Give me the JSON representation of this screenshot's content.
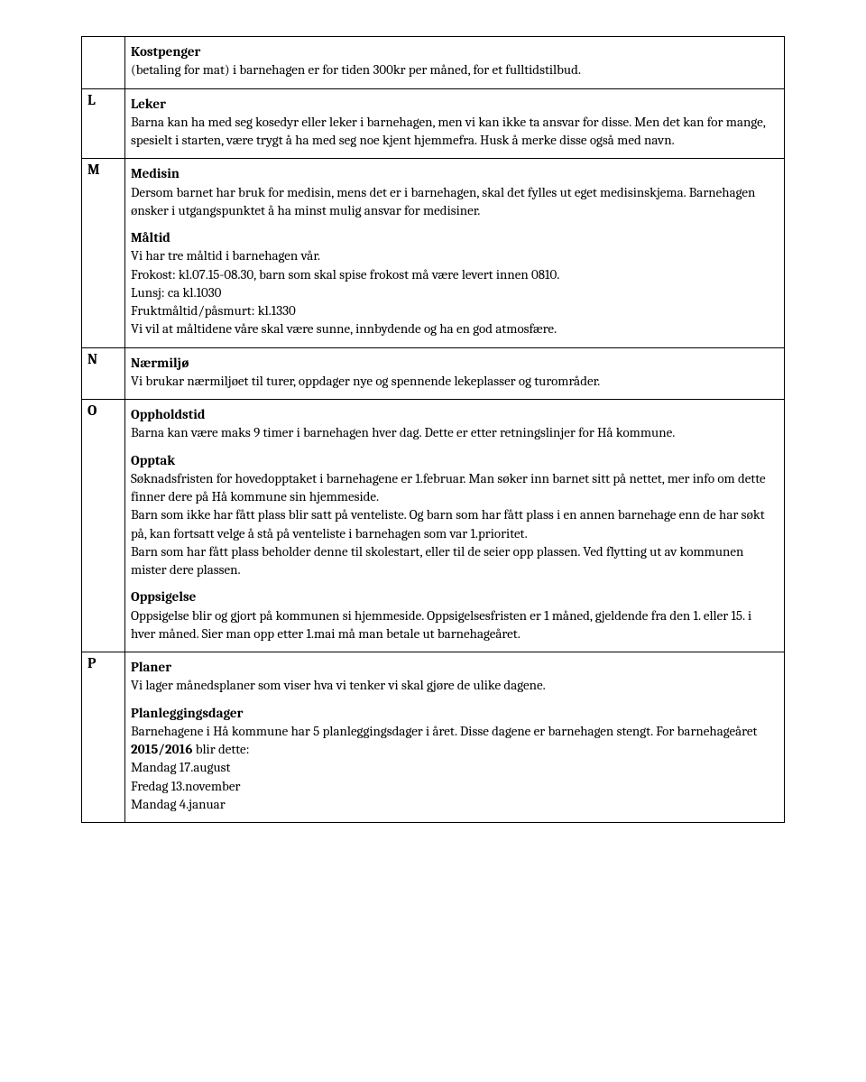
{
  "rows": [
    {
      "letter": "",
      "sections": [
        {
          "heading": "Kostpenger",
          "body": "(betaling for mat) i barnehagen er for tiden 300kr per måned, for et fulltidstilbud."
        }
      ]
    },
    {
      "letter": "L",
      "sections": [
        {
          "heading": "Leker",
          "body": "Barna kan ha med seg kosedyr eller leker i barnehagen, men vi kan ikke ta ansvar for disse. Men det kan for mange, spesielt i starten, være trygt å ha med seg noe kjent hjemmefra. Husk å merke disse også med navn."
        }
      ]
    },
    {
      "letter": "M",
      "sections": [
        {
          "heading": "Medisin",
          "body": "Dersom barnet har bruk for medisin, mens det er i barnehagen, skal det fylles ut eget medisinskjema. Barnehagen ønsker i utgangspunktet å ha minst mulig ansvar for medisiner."
        },
        {
          "heading": "Måltid",
          "lines": [
            "Vi har tre måltid i barnehagen vår.",
            "Frokost: kl.07.15-08.30, barn som skal spise frokost må være levert innen 0810.",
            "Lunsj: ca kl.1030",
            "Fruktmåltid/påsmurt: kl.1330",
            "Vi vil at måltidene våre skal være sunne, innbydende og ha en god atmosfære."
          ]
        }
      ]
    },
    {
      "letter": "N",
      "sections": [
        {
          "heading": "Nærmiljø",
          "body": "Vi brukar nærmiljøet til turer, oppdager nye og spennende lekeplasser og turområder."
        }
      ]
    },
    {
      "letter": "O",
      "sections": [
        {
          "heading": "Oppholdstid",
          "body": "Barna kan være maks 9 timer i barnehagen hver dag. Dette er etter retningslinjer for Hå kommune."
        },
        {
          "heading": "Opptak",
          "paragraphs": [
            "Søknadsfristen for hovedopptaket i barnehagene er 1.februar. Man søker inn barnet sitt på nettet, mer info om dette finner dere på Hå kommune sin hjemmeside.",
            "Barn som ikke har fått plass blir satt på venteliste. Og barn som har fått plass i en annen barnehage enn de har søkt på, kan fortsatt velge å stå på venteliste i barnehagen som var 1.prioritet.",
            "Barn som har fått plass beholder denne til skolestart, eller til de seier opp plassen. Ved flytting ut av kommunen mister dere plassen."
          ]
        },
        {
          "heading": "Oppsigelse",
          "body": "Oppsigelse blir og gjort på kommunen si hjemmeside. Oppsigelsesfristen er 1 måned, gjeldende fra den 1. eller 15. i hver måned.  Sier man opp etter 1.mai må man betale ut barnehageåret."
        }
      ]
    },
    {
      "letter": "P",
      "sections": [
        {
          "heading": "Planer",
          "body": "Vi lager månedsplaner som viser hva vi tenker vi skal gjøre de ulike dagene."
        },
        {
          "heading": "Planleggingsdager",
          "richLines": [
            {
              "prefix": "Barnehagene i Hå kommune har 5 planleggingsdager i året. Disse dagene er barnehagen stengt. For barnehageåret ",
              "bold": "2015/2016",
              "suffix": " blir dette:"
            },
            {
              "text": "Mandag 17.august"
            },
            {
              "text": "Fredag 13.november"
            },
            {
              "text": "Mandag 4.januar"
            }
          ]
        }
      ]
    }
  ]
}
